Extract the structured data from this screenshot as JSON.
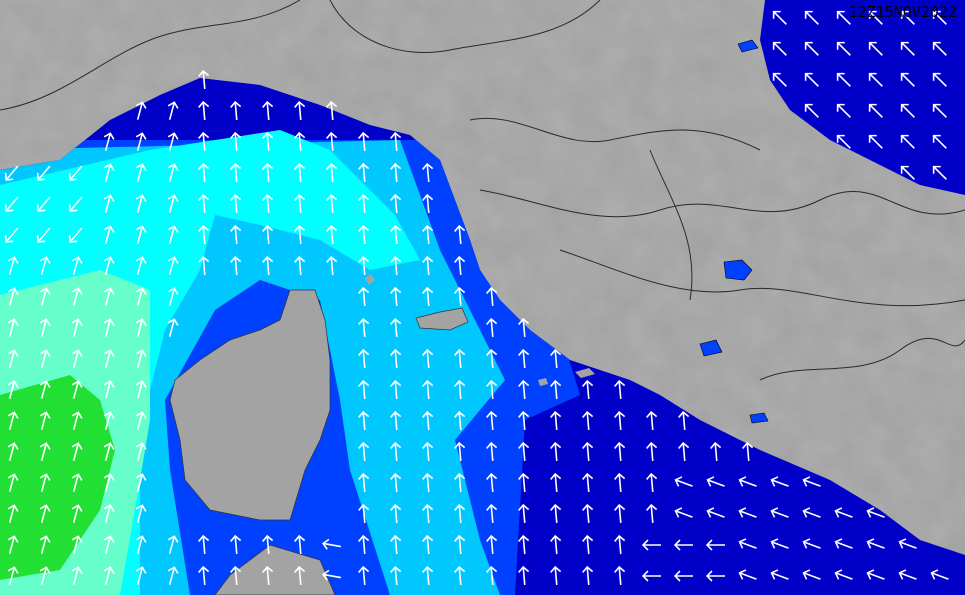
{
  "map": {
    "timestamp": "12Z15NOV2022",
    "colors": {
      "land": "#a3a3a3",
      "border": "#2a2a2a",
      "sea_low": "#0000c8",
      "sea_band_1": "#0040ff",
      "sea_band_2": "#00c8ff",
      "sea_band_3": "#00ffff",
      "sea_band_4": "#66ffcc",
      "sea_band_5": "#22e033",
      "arrow": "#ffffff"
    },
    "arrow_icon": "direction-arrow-icon"
  }
}
